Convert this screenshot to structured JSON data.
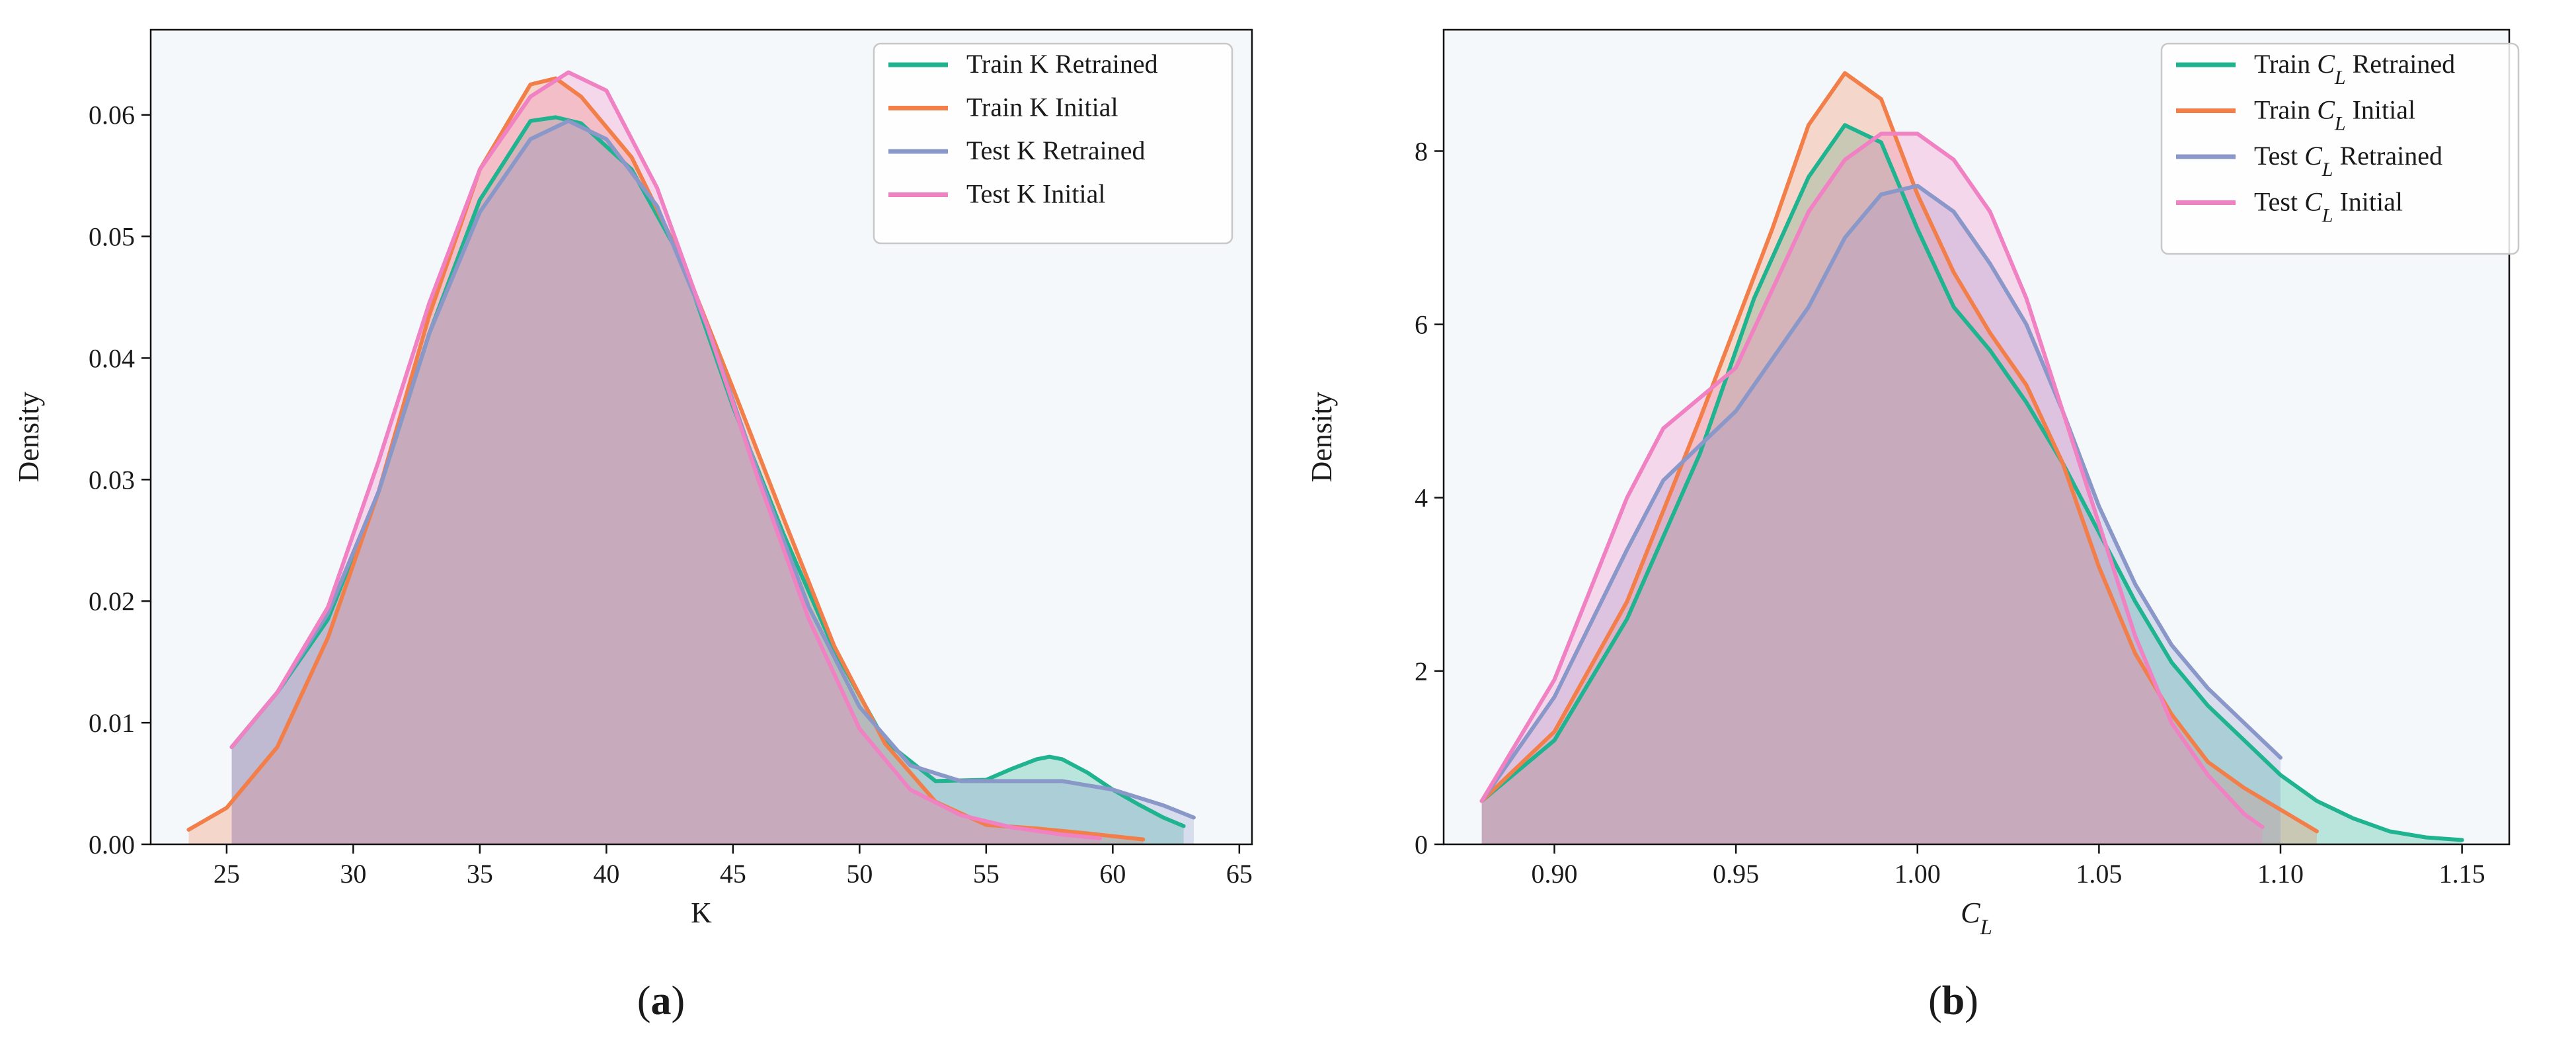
{
  "chart_data": [
    {
      "type": "line",
      "panel_label": "a",
      "xlabel": "K",
      "ylabel": "Density",
      "xlim": [
        22,
        65.5
      ],
      "ylim": [
        0,
        0.067
      ],
      "xticks": [
        25,
        30,
        35,
        40,
        45,
        50,
        55,
        60,
        65
      ],
      "yticks": [
        0.0,
        0.01,
        0.02,
        0.03,
        0.04,
        0.05,
        0.06
      ],
      "ytick_labels": [
        "0.00",
        "0.01",
        "0.02",
        "0.03",
        "0.04",
        "0.05",
        "0.06"
      ],
      "grid": false,
      "filled": true,
      "legend_position": "top-right",
      "series": [
        {
          "name": "Train K Retrained",
          "color": "#1fb38f",
          "x": [
            25.2,
            27,
            29,
            31,
            33,
            35,
            37,
            38,
            39,
            41,
            43,
            45,
            47,
            49,
            51,
            53,
            55,
            56,
            57,
            57.5,
            58,
            59,
            60,
            61,
            62,
            62.8
          ],
          "y": [
            0.008,
            0.0125,
            0.0185,
            0.029,
            0.042,
            0.053,
            0.0595,
            0.0598,
            0.0593,
            0.0555,
            0.048,
            0.036,
            0.0255,
            0.016,
            0.0085,
            0.0052,
            0.0053,
            0.0062,
            0.007,
            0.0072,
            0.007,
            0.0059,
            0.0045,
            0.0033,
            0.0022,
            0.0015
          ]
        },
        {
          "name": "Train K Initial",
          "color": "#f27e4a",
          "x": [
            23.5,
            25,
            27,
            29,
            31,
            33,
            35,
            37,
            38,
            39,
            41,
            43,
            45,
            47,
            49,
            51,
            53,
            55,
            57,
            59,
            61.2
          ],
          "y": [
            0.0012,
            0.003,
            0.008,
            0.017,
            0.029,
            0.0435,
            0.0555,
            0.0625,
            0.063,
            0.0615,
            0.0565,
            0.048,
            0.0375,
            0.0268,
            0.0163,
            0.0083,
            0.0035,
            0.0016,
            0.0013,
            0.0009,
            0.0004
          ]
        },
        {
          "name": "Test K Retrained",
          "color": "#8a98c9",
          "x": [
            25.2,
            27,
            29,
            31,
            33,
            35,
            37,
            38.5,
            40,
            42,
            44,
            46,
            48,
            50,
            52,
            54,
            56,
            58,
            60,
            62,
            63.2
          ],
          "y": [
            0.008,
            0.0125,
            0.019,
            0.029,
            0.042,
            0.052,
            0.058,
            0.0595,
            0.058,
            0.0525,
            0.0425,
            0.0305,
            0.0195,
            0.0113,
            0.0065,
            0.0052,
            0.0052,
            0.0052,
            0.0045,
            0.0032,
            0.0022
          ]
        },
        {
          "name": "Test K Initial",
          "color": "#f081c3",
          "x": [
            25.2,
            27,
            29,
            31,
            33,
            35,
            37,
            38.5,
            40,
            42,
            44,
            46,
            48,
            50,
            52,
            54,
            56,
            58,
            59.5
          ],
          "y": [
            0.008,
            0.0125,
            0.0195,
            0.0315,
            0.0445,
            0.0555,
            0.0615,
            0.0635,
            0.062,
            0.054,
            0.0425,
            0.03,
            0.0185,
            0.0095,
            0.0045,
            0.0024,
            0.0014,
            0.0008,
            0.0005
          ]
        }
      ]
    },
    {
      "type": "line",
      "panel_label": "b",
      "xlabel": "C_L",
      "ylabel": "Density",
      "xlim": [
        0.8695,
        1.163
      ],
      "ylim": [
        0,
        9.4
      ],
      "xticks": [
        0.9,
        0.95,
        1.0,
        1.05,
        1.1,
        1.15
      ],
      "xtick_labels": [
        "0.90",
        "0.95",
        "1.00",
        "1.05",
        "1.10",
        "1.15"
      ],
      "yticks": [
        0,
        2,
        4,
        6,
        8
      ],
      "ytick_labels": [
        "0",
        "2",
        "4",
        "6",
        "8"
      ],
      "grid": false,
      "filled": true,
      "legend_position": "top-right",
      "series": [
        {
          "name": "Train C_L Retrained",
          "color": "#1fb38f",
          "x": [
            0.88,
            0.9,
            0.92,
            0.94,
            0.955,
            0.97,
            0.98,
            0.99,
            1.0,
            1.01,
            1.02,
            1.03,
            1.04,
            1.05,
            1.06,
            1.07,
            1.08,
            1.09,
            1.1,
            1.11,
            1.12,
            1.13,
            1.14,
            1.15
          ],
          "y": [
            0.5,
            1.2,
            2.6,
            4.5,
            6.3,
            7.7,
            8.3,
            8.1,
            7.1,
            6.2,
            5.7,
            5.1,
            4.4,
            3.6,
            2.8,
            2.1,
            1.6,
            1.2,
            0.8,
            0.5,
            0.3,
            0.15,
            0.08,
            0.05
          ]
        },
        {
          "name": "Train C_L Initial",
          "color": "#f27e4a",
          "x": [
            0.88,
            0.9,
            0.92,
            0.94,
            0.96,
            0.97,
            0.98,
            0.99,
            1.0,
            1.01,
            1.02,
            1.03,
            1.04,
            1.05,
            1.06,
            1.07,
            1.08,
            1.09,
            1.1,
            1.11
          ],
          "y": [
            0.5,
            1.3,
            2.8,
            4.9,
            7.1,
            8.3,
            8.9,
            8.6,
            7.5,
            6.6,
            5.9,
            5.3,
            4.4,
            3.2,
            2.2,
            1.5,
            0.95,
            0.65,
            0.4,
            0.15
          ]
        },
        {
          "name": "Test C_L Retrained",
          "color": "#8a98c9",
          "x": [
            0.88,
            0.9,
            0.92,
            0.93,
            0.95,
            0.97,
            0.98,
            0.99,
            1.0,
            1.01,
            1.02,
            1.03,
            1.04,
            1.05,
            1.06,
            1.07,
            1.08,
            1.09,
            1.1
          ],
          "y": [
            0.5,
            1.7,
            3.4,
            4.2,
            5.0,
            6.2,
            7.0,
            7.5,
            7.6,
            7.3,
            6.7,
            6.0,
            5.0,
            3.9,
            3.0,
            2.3,
            1.8,
            1.4,
            1.0
          ]
        },
        {
          "name": "Test C_L Initial",
          "color": "#f081c3",
          "x": [
            0.88,
            0.9,
            0.92,
            0.93,
            0.95,
            0.96,
            0.97,
            0.98,
            0.99,
            1.0,
            1.01,
            1.02,
            1.03,
            1.04,
            1.05,
            1.06,
            1.07,
            1.08,
            1.09,
            1.095
          ],
          "y": [
            0.5,
            1.9,
            4.0,
            4.8,
            5.5,
            6.4,
            7.3,
            7.9,
            8.2,
            8.2,
            7.9,
            7.3,
            6.3,
            5.0,
            3.7,
            2.4,
            1.4,
            0.8,
            0.35,
            0.2
          ]
        }
      ]
    }
  ]
}
